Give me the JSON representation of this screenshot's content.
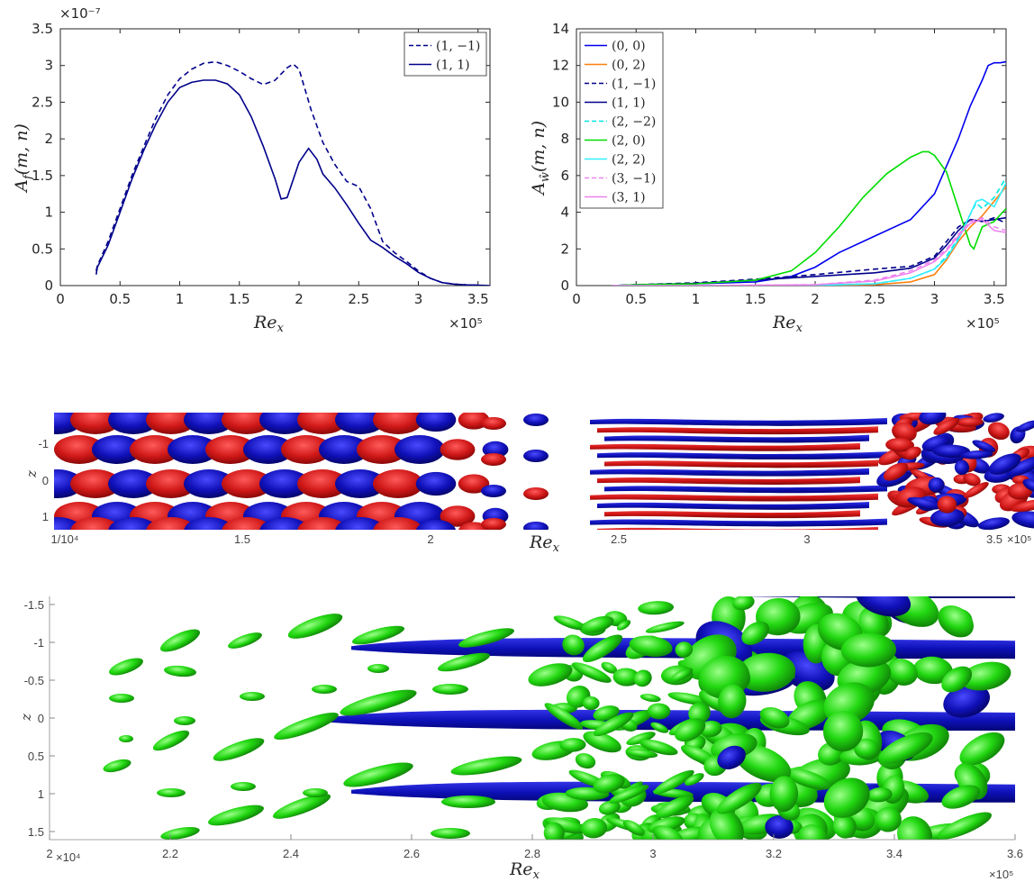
{
  "chart_data": [
    {
      "type": "line",
      "ylabel": "A_f(m,n)",
      "xlabel": "Re_x",
      "x_exponent": "×10⁵",
      "y_exponent": "×10⁻⁷",
      "xlim": [
        0,
        3.6
      ],
      "ylim": [
        0,
        3.5
      ],
      "xticks": [
        "0",
        "0.5",
        "1",
        "1.5",
        "2",
        "2.5",
        "3",
        "3.5"
      ],
      "yticks": [
        "0",
        "0.5",
        "1",
        "1.5",
        "2",
        "2.5",
        "3",
        "3.5"
      ],
      "legend_position": "top-right",
      "grid": false,
      "series": [
        {
          "name": "(1, −1)",
          "color": "#00008b",
          "dash": true,
          "x": [
            0.3,
            0.31,
            0.4,
            0.5,
            0.6,
            0.7,
            0.8,
            0.9,
            1.0,
            1.1,
            1.2,
            1.3,
            1.4,
            1.5,
            1.6,
            1.7,
            1.8,
            1.9,
            1.95,
            2.0,
            2.1,
            2.2,
            2.3,
            2.4,
            2.5,
            2.6,
            2.7,
            2.8,
            2.9,
            3.0,
            3.1,
            3.2,
            3.3,
            3.4,
            3.5,
            3.6
          ],
          "y": [
            0.2,
            0.27,
            0.6,
            1.05,
            1.5,
            1.9,
            2.28,
            2.6,
            2.82,
            2.95,
            3.03,
            3.05,
            3.0,
            2.92,
            2.82,
            2.74,
            2.8,
            2.97,
            3.02,
            2.95,
            2.4,
            1.95,
            1.65,
            1.42,
            1.35,
            1.05,
            0.6,
            0.45,
            0.33,
            0.2,
            0.1,
            0.04,
            0.02,
            0.01,
            0.005,
            0
          ]
        },
        {
          "name": "(1, 1)",
          "color": "#00008b",
          "dash": false,
          "x": [
            0.3,
            0.31,
            0.4,
            0.5,
            0.6,
            0.7,
            0.8,
            0.9,
            1.0,
            1.1,
            1.2,
            1.3,
            1.4,
            1.5,
            1.6,
            1.7,
            1.8,
            1.85,
            1.9,
            2.0,
            2.08,
            2.15,
            2.2,
            2.3,
            2.4,
            2.5,
            2.6,
            2.7,
            2.8,
            2.9,
            3.0,
            3.1,
            3.2,
            3.3,
            3.4,
            3.5,
            3.6
          ],
          "y": [
            0.15,
            0.25,
            0.55,
            1.0,
            1.45,
            1.85,
            2.2,
            2.5,
            2.7,
            2.77,
            2.8,
            2.8,
            2.75,
            2.6,
            2.3,
            1.9,
            1.45,
            1.18,
            1.2,
            1.68,
            1.87,
            1.72,
            1.52,
            1.33,
            1.1,
            0.85,
            0.62,
            0.52,
            0.4,
            0.3,
            0.18,
            0.1,
            0.04,
            0.02,
            0.01,
            0.005,
            0
          ]
        }
      ]
    },
    {
      "type": "line",
      "ylabel": "A_ŵ(m,n)",
      "xlabel": "Re_x",
      "x_exponent": "×10⁵",
      "xlim": [
        0,
        3.6
      ],
      "ylim": [
        0,
        14
      ],
      "xticks": [
        "0",
        "0.5",
        "1",
        "1.5",
        "2",
        "2.5",
        "3",
        "3.5"
      ],
      "yticks": [
        "0",
        "2",
        "4",
        "6",
        "8",
        "10",
        "12",
        "14"
      ],
      "legend_position": "top-left",
      "grid": false,
      "series": [
        {
          "name": "(0, 0)",
          "color": "#0000ee",
          "dash": false,
          "x": [
            0.3,
            0.5,
            1.0,
            1.5,
            1.8,
            2.0,
            2.2,
            2.5,
            2.8,
            3.0,
            3.2,
            3.3,
            3.4,
            3.45,
            3.5,
            3.55,
            3.6
          ],
          "y": [
            0,
            0.05,
            0.1,
            0.2,
            0.5,
            1.0,
            1.8,
            2.7,
            3.6,
            5.0,
            8.0,
            9.8,
            11.2,
            12.0,
            12.15,
            12.15,
            12.2
          ]
        },
        {
          "name": "(0, 2)",
          "color": "#ff7f0e",
          "dash": false,
          "x": [
            0.3,
            1.0,
            2.0,
            2.5,
            2.8,
            3.0,
            3.1,
            3.2,
            3.3,
            3.4,
            3.5,
            3.6
          ],
          "y": [
            0,
            0,
            0.02,
            0.05,
            0.2,
            0.6,
            1.4,
            2.4,
            3.2,
            3.8,
            4.6,
            5.4
          ]
        },
        {
          "name": "(1, −1)",
          "color": "#00008b",
          "dash": true,
          "x": [
            0.3,
            0.5,
            1.0,
            1.5,
            2.0,
            2.5,
            2.8,
            3.0,
            3.1,
            3.2,
            3.3,
            3.4,
            3.5,
            3.6
          ],
          "y": [
            0,
            0.05,
            0.15,
            0.35,
            0.6,
            0.9,
            1.05,
            1.6,
            2.4,
            3.2,
            3.6,
            3.5,
            3.7,
            3.4
          ]
        },
        {
          "name": "(1, 1)",
          "color": "#00008b",
          "dash": false,
          "x": [
            0.3,
            0.5,
            1.0,
            1.5,
            2.0,
            2.5,
            2.8,
            3.0,
            3.1,
            3.2,
            3.3,
            3.4,
            3.5,
            3.6
          ],
          "y": [
            0,
            0.05,
            0.12,
            0.3,
            0.5,
            0.7,
            0.95,
            1.5,
            2.2,
            3.0,
            3.6,
            3.5,
            3.6,
            3.7
          ]
        },
        {
          "name": "(2, −2)",
          "color": "#00e5e5",
          "dash": true,
          "x": [
            0.3,
            1.0,
            2.0,
            2.5,
            2.8,
            3.0,
            3.1,
            3.2,
            3.3,
            3.35,
            3.4,
            3.5,
            3.6
          ],
          "y": [
            0,
            0,
            0.02,
            0.1,
            0.4,
            0.9,
            1.6,
            2.6,
            3.9,
            4.5,
            4.2,
            4.8,
            5.9
          ]
        },
        {
          "name": "(2, 0)",
          "color": "#00dd00",
          "dash": false,
          "x": [
            0.3,
            0.5,
            1.0,
            1.5,
            1.8,
            2.0,
            2.2,
            2.4,
            2.6,
            2.8,
            2.9,
            2.95,
            3.0,
            3.1,
            3.2,
            3.3,
            3.33,
            3.4,
            3.5,
            3.6
          ],
          "y": [
            0,
            0.05,
            0.1,
            0.3,
            0.8,
            1.8,
            3.2,
            4.8,
            6.1,
            7.0,
            7.3,
            7.3,
            7.1,
            6.2,
            4.2,
            2.2,
            2.0,
            3.2,
            3.5,
            4.2
          ]
        },
        {
          "name": "(2, 2)",
          "color": "#33eeff",
          "dash": false,
          "x": [
            0.3,
            1.0,
            2.0,
            2.5,
            2.8,
            3.0,
            3.1,
            3.2,
            3.3,
            3.35,
            3.4,
            3.5,
            3.6
          ],
          "y": [
            0,
            0,
            0.02,
            0.1,
            0.4,
            0.9,
            1.5,
            2.5,
            3.9,
            4.6,
            4.7,
            4.3,
            5.6
          ]
        },
        {
          "name": "(3, −1)",
          "color": "#ee82ee",
          "dash": true,
          "x": [
            0.3,
            1.0,
            2.0,
            2.5,
            2.8,
            3.0,
            3.1,
            3.2,
            3.3,
            3.4,
            3.5,
            3.6
          ],
          "y": [
            0,
            0,
            0.05,
            0.3,
            0.8,
            1.4,
            2.0,
            2.8,
            3.5,
            3.7,
            3.2,
            3.0
          ]
        },
        {
          "name": "(3, 1)",
          "color": "#ee82ee",
          "dash": false,
          "x": [
            0.3,
            1.0,
            2.0,
            2.5,
            2.8,
            3.0,
            3.1,
            3.2,
            3.3,
            3.4,
            3.5,
            3.6
          ],
          "y": [
            0,
            0,
            0.05,
            0.25,
            0.7,
            1.3,
            1.9,
            2.7,
            3.4,
            3.6,
            3.0,
            2.9
          ]
        }
      ]
    },
    {
      "type": "scatter",
      "description_colors": {
        "positive": "#d41818",
        "negative": "#1010b0"
      },
      "xlabel": "Re_x",
      "ylabel": "z",
      "xticks": [
        "1/10⁴",
        "1.5",
        "2",
        "2.5",
        "3",
        "3.5"
      ],
      "yticks": [
        "-1",
        "0",
        "1"
      ],
      "x_exponent": "×10⁵"
    },
    {
      "type": "scatter",
      "description_colors": {
        "green": "#22dd11",
        "blue": "#0d11b8"
      },
      "xlabel": "Re_x",
      "ylabel": "z",
      "xlim": [
        2.0,
        3.6
      ],
      "xticks": [
        "2",
        "2.2",
        "2.4",
        "2.6",
        "2.8",
        "3",
        "3.2",
        "3.4",
        "3.6"
      ],
      "yticks": [
        "-1.5",
        "-1",
        "-0.5",
        "0",
        "0.5",
        "1",
        "1.5"
      ],
      "x_first_tick_suffix": "×10⁴",
      "x_exponent": "×10⁵"
    }
  ]
}
